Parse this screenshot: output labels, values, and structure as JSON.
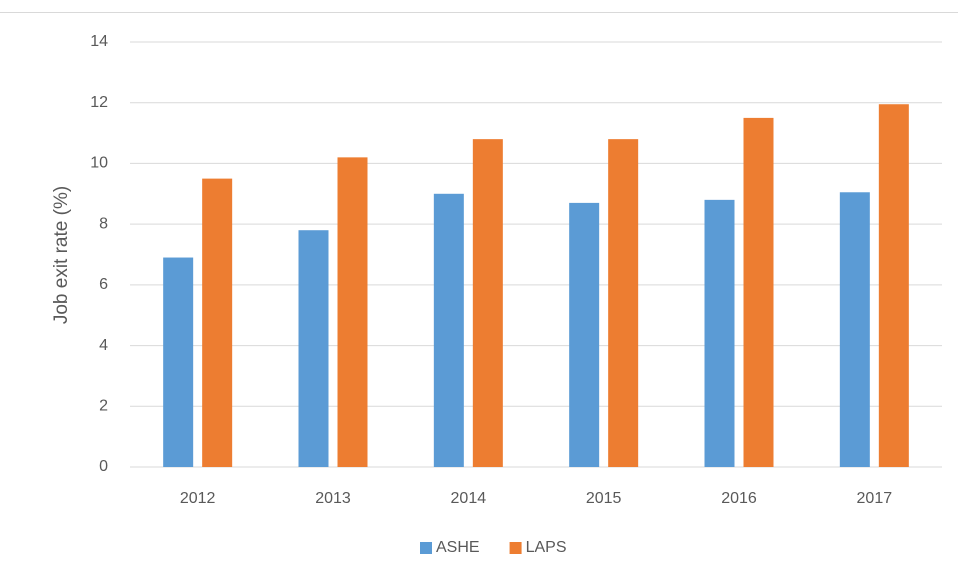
{
  "chart_data": {
    "type": "bar",
    "y_label": "Job exit rate (%)",
    "categories": [
      "2012",
      "2013",
      "2014",
      "2015",
      "2016",
      "2017"
    ],
    "series": [
      {
        "name": "ASHE",
        "color": "#5b9bd5",
        "values": [
          6.9,
          7.8,
          9.0,
          8.7,
          8.8,
          9.05
        ]
      },
      {
        "name": "LAPS",
        "color": "#ed7d31",
        "values": [
          9.5,
          10.2,
          10.8,
          10.8,
          11.5,
          11.95
        ]
      }
    ],
    "ylim": [
      0,
      14
    ],
    "yticks": [
      0,
      2,
      4,
      6,
      8,
      10,
      12,
      14
    ],
    "grid": true,
    "legend": "bottom"
  }
}
